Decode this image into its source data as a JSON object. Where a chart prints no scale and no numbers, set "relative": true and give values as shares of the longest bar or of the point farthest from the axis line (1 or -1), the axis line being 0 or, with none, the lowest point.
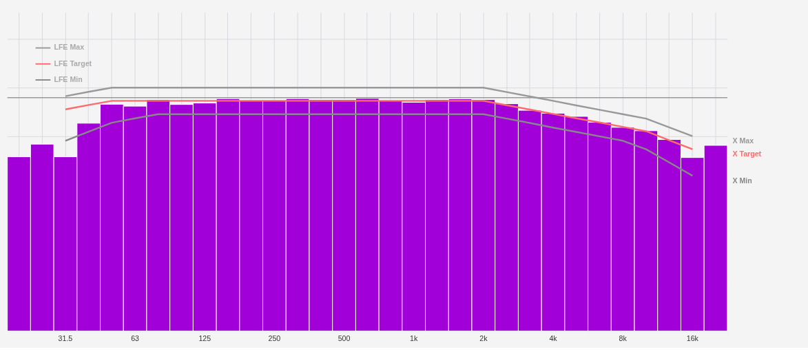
{
  "chart_data": {
    "type": "bar",
    "relative": true,
    "categories": [
      null,
      null,
      "31.5",
      null,
      null,
      "63",
      null,
      null,
      "125",
      null,
      null,
      "250",
      null,
      null,
      "500",
      null,
      null,
      "1k",
      null,
      null,
      "2k",
      null,
      null,
      "4k",
      null,
      null,
      "8k",
      null,
      null,
      "16k",
      null
    ],
    "series": [
      {
        "color": "#a100d9",
        "values": [
          0.716,
          0.768,
          0.716,
          0.854,
          0.932,
          0.924,
          0.951,
          0.931,
          0.937,
          0.955,
          0.948,
          0.948,
          0.955,
          0.951,
          0.951,
          0.956,
          0.946,
          0.94,
          0.951,
          0.954,
          0.951,
          0.934,
          0.907,
          0.895,
          0.882,
          0.858,
          0.837,
          0.823,
          0.787,
          0.713,
          0.763
        ]
      },
      {
        "type": "line",
        "name": "LFE Max",
        "color": "#999999",
        "values": [
          null,
          null,
          0.965,
          0.983,
          1,
          1,
          1,
          1,
          1,
          1,
          1,
          1,
          1,
          1,
          1,
          1,
          1,
          1,
          1,
          1,
          1,
          0.982,
          0.964,
          0.946,
          0.927,
          0.909,
          0.891,
          0.873,
          0.837,
          0.801,
          null
        ]
      },
      {
        "type": "line",
        "name": "LFE Target",
        "color": "#ff6b6b",
        "values": [
          null,
          null,
          0.911,
          0.929,
          0.946,
          0.946,
          0.946,
          0.946,
          0.946,
          0.946,
          0.946,
          0.946,
          0.946,
          0.946,
          0.946,
          0.946,
          0.946,
          0.946,
          0.946,
          0.946,
          0.946,
          0.928,
          0.91,
          0.892,
          0.874,
          0.857,
          0.839,
          0.821,
          0.784,
          0.747,
          null
        ]
      },
      {
        "type": "line",
        "name": "LFE Min",
        "color": "#888888",
        "values": [
          null,
          null,
          0.782,
          0.819,
          0.856,
          0.874,
          0.891,
          0.891,
          0.891,
          0.891,
          0.891,
          0.891,
          0.891,
          0.891,
          0.891,
          0.891,
          0.891,
          0.891,
          0.891,
          0.891,
          0.891,
          0.873,
          0.855,
          0.836,
          0.818,
          0.8,
          0.782,
          0.747,
          0.693,
          0.638,
          null
        ]
      }
    ],
    "ref_lines": [
      {
        "axis": "y",
        "value": 0.959,
        "color": "#999999"
      }
    ],
    "annotations": [
      "X Max",
      "X Target",
      "X Min"
    ],
    "legend": "top left",
    "grid": true,
    "tick_labels": "x"
  }
}
